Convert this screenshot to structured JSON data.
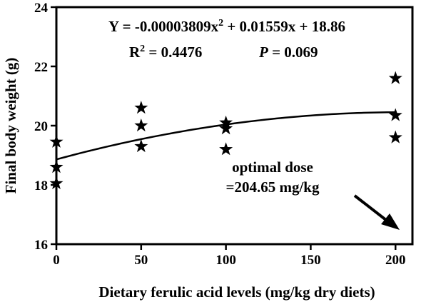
{
  "chart_data": {
    "type": "scatter",
    "xlabel": "Dietary ferulic acid levels (mg/kg dry diets)",
    "ylabel": "Final body weight (g)",
    "xlim": [
      0,
      210
    ],
    "ylim": [
      16,
      24
    ],
    "x_ticks": [
      0,
      50,
      100,
      150,
      200
    ],
    "x_tick_labels": [
      "0",
      "50",
      "100",
      "150",
      "200"
    ],
    "y_ticks": [
      16,
      18,
      20,
      22,
      24
    ],
    "y_tick_labels": [
      "16",
      "18",
      "20",
      "22",
      "24"
    ],
    "points": [
      {
        "x": 0,
        "y": 19.45
      },
      {
        "x": 0,
        "y": 18.6
      },
      {
        "x": 0,
        "y": 18.05
      },
      {
        "x": 50,
        "y": 20.6
      },
      {
        "x": 50,
        "y": 20.0
      },
      {
        "x": 50,
        "y": 19.3
      },
      {
        "x": 100,
        "y": 20.1
      },
      {
        "x": 100,
        "y": 19.9
      },
      {
        "x": 100,
        "y": 19.2
      },
      {
        "x": 200,
        "y": 21.6
      },
      {
        "x": 200,
        "y": 20.35
      },
      {
        "x": 200,
        "y": 19.6
      }
    ],
    "fit": {
      "a": -3.809e-05,
      "b": 0.01559,
      "c": 18.86,
      "x_range": [
        0,
        200
      ]
    },
    "equation": {
      "prefix": "Y = -0.00003809x",
      "sup": "2",
      "suffix": " + 0.01559x + 18.86"
    },
    "r2": {
      "prefix": "R",
      "sup": "2",
      "suffix": " = 0.4476"
    },
    "pvalue": {
      "p": "P",
      "suffix": " = 0.069"
    },
    "annotation": {
      "line1": "optimal dose",
      "line2": "=204.65 mg/kg"
    },
    "grid": false,
    "legend": "none"
  }
}
